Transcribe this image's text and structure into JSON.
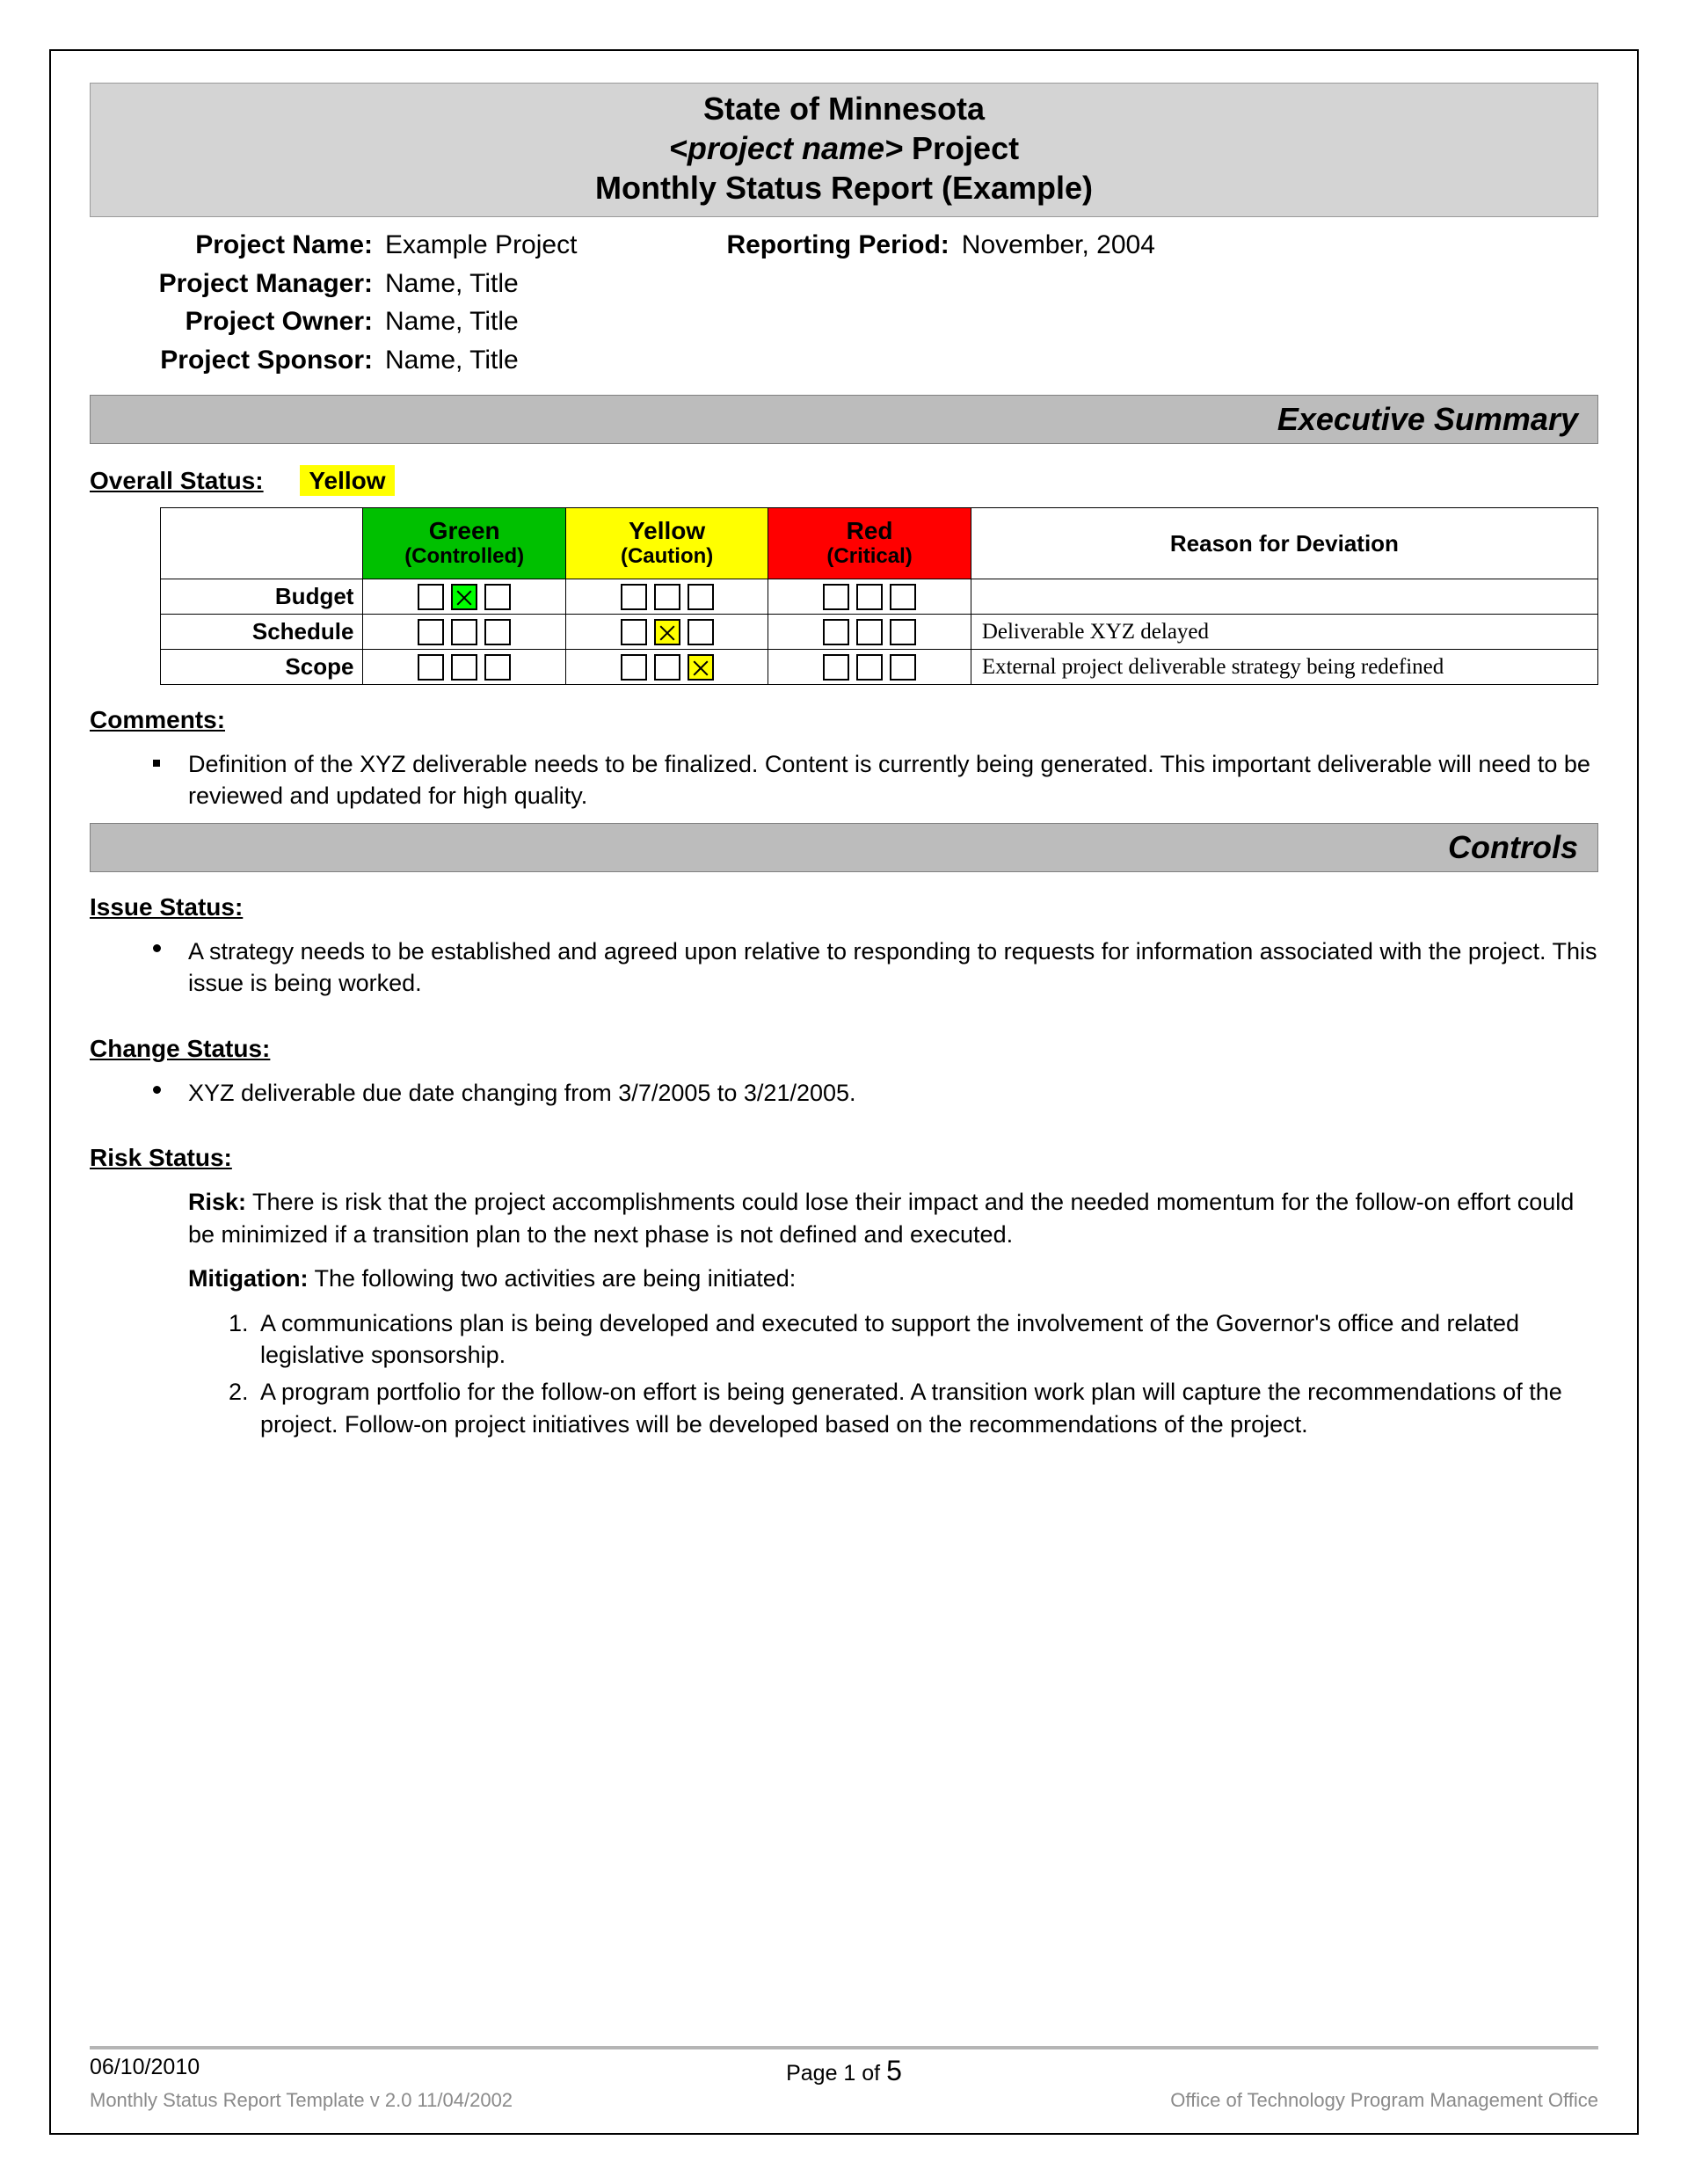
{
  "header": {
    "line1": "State of Minnesota",
    "line2_ital": "<project name>",
    "line2_rest": " Project",
    "line3": "Monthly Status Report (Example)"
  },
  "info": {
    "project_name_label": "Project Name:",
    "project_name": "Example Project",
    "reporting_period_label": "Reporting Period:",
    "reporting_period": "November, 2004",
    "project_manager_label": "Project Manager:",
    "project_manager": "Name, Title",
    "project_owner_label": "Project Owner:",
    "project_owner": "Name, Title",
    "project_sponsor_label": "Project Sponsor:",
    "project_sponsor": "Name, Title"
  },
  "sections": {
    "exec_summary": "Executive Summary",
    "controls": "Controls"
  },
  "overall": {
    "label": "Overall Status:",
    "value": "Yellow",
    "value_bg": "#ffff00"
  },
  "status_table": {
    "columns": {
      "green": {
        "title": "Green",
        "sub": "(Controlled)",
        "bg": "#00c000",
        "fg": "#000000"
      },
      "yellow": {
        "title": "Yellow",
        "sub": "(Caution)",
        "bg": "#ffff00",
        "fg": "#000000"
      },
      "red": {
        "title": "Red",
        "sub": "(Critical)",
        "bg": "#ff0000",
        "fg": "#000000"
      },
      "reason": "Reason for Deviation"
    },
    "rows": [
      {
        "label": "Budget",
        "green": [
          false,
          true,
          false
        ],
        "yellow": [
          false,
          false,
          false
        ],
        "red": [
          false,
          false,
          false
        ],
        "reason": ""
      },
      {
        "label": "Schedule",
        "green": [
          false,
          false,
          false
        ],
        "yellow": [
          false,
          true,
          false
        ],
        "red": [
          false,
          false,
          false
        ],
        "reason": "Deliverable XYZ delayed"
      },
      {
        "label": "Scope",
        "green": [
          false,
          false,
          false
        ],
        "yellow": [
          false,
          false,
          true
        ],
        "red": [
          false,
          false,
          false
        ],
        "reason": "External project deliverable strategy being redefined"
      }
    ],
    "checked_bg": {
      "green": "#00ff00",
      "yellow": "#ffff00",
      "red": "#ff0000"
    }
  },
  "comments": {
    "title": "Comments:",
    "items": [
      "Definition of the XYZ deliverable needs to be finalized.  Content is currently being generated.  This important deliverable will need to be reviewed and updated for high quality."
    ]
  },
  "issue": {
    "title": "Issue Status:",
    "items": [
      "A strategy needs to be established and agreed upon relative to responding to requests for information associated with the project.  This issue is being worked."
    ]
  },
  "change": {
    "title": "Change Status:",
    "items": [
      "XYZ deliverable due date changing from 3/7/2005 to 3/21/2005."
    ]
  },
  "risk": {
    "title_prefix": "Risk ",
    "title_rest": "Status:",
    "risk_label": "Risk:",
    "risk_text": " There is risk that the project accomplishments could lose their impact and the needed momentum for the follow-on effort could be minimized if a transition plan to the next phase is not defined and executed.",
    "mitigation_label": "Mitigation:",
    "mitigation_intro": "  The following two activities are being initiated:",
    "mitigation_items": [
      "A communications plan is being developed and executed to support the involvement of the Governor's office and related legislative sponsorship.",
      "A program portfolio for the follow-on effort is being generated. A transition work plan will capture the recommendations of the project. Follow-on project initiatives will be developed based on the recommendations of the project."
    ]
  },
  "footer": {
    "date": "06/10/2010",
    "page_prefix": "Page 1 of ",
    "page_total": "5",
    "template_version": "Monthly Status Report Template  v 2.0  11/04/2002",
    "office": "Office of Technology Program Management Office"
  }
}
